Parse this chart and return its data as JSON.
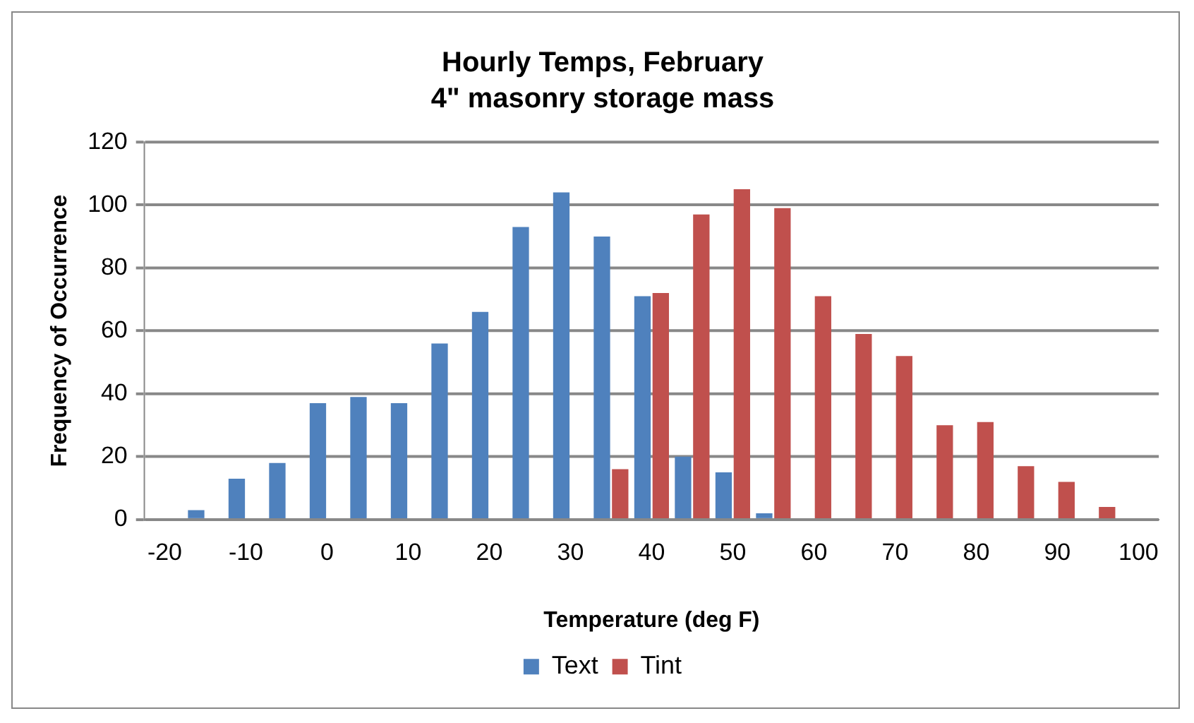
{
  "chart_data": {
    "type": "bar",
    "title": "Hourly Temps, February",
    "subtitle": "4\" masonry storage mass",
    "xlabel": "Temperature (deg F)",
    "ylabel": "Frequency of Occurrence",
    "categories": [
      "-20",
      null,
      "-10",
      null,
      "0",
      null,
      "10",
      null,
      "20",
      null,
      "30",
      null,
      "40",
      null,
      "50",
      null,
      "60",
      null,
      "70",
      null,
      "80",
      null,
      "90",
      null,
      "100"
    ],
    "series": [
      {
        "name": "Text",
        "color": "#4f81bd",
        "values": [
          0,
          3,
          13,
          18,
          37,
          39,
          37,
          56,
          66,
          93,
          104,
          90,
          71,
          20,
          15,
          2,
          0,
          0,
          0,
          0,
          0,
          0,
          0,
          0,
          0
        ]
      },
      {
        "name": "Tint",
        "color": "#c0504d",
        "values": [
          0,
          0,
          0,
          0,
          0,
          0,
          0,
          0,
          0,
          0,
          0,
          16,
          72,
          97,
          105,
          99,
          71,
          59,
          52,
          30,
          31,
          17,
          12,
          4,
          0
        ]
      }
    ],
    "ylim": [
      0,
      120
    ],
    "yticks": [
      0,
      20,
      40,
      60,
      80,
      100,
      120
    ],
    "grid": "y",
    "legend": "bottom"
  }
}
